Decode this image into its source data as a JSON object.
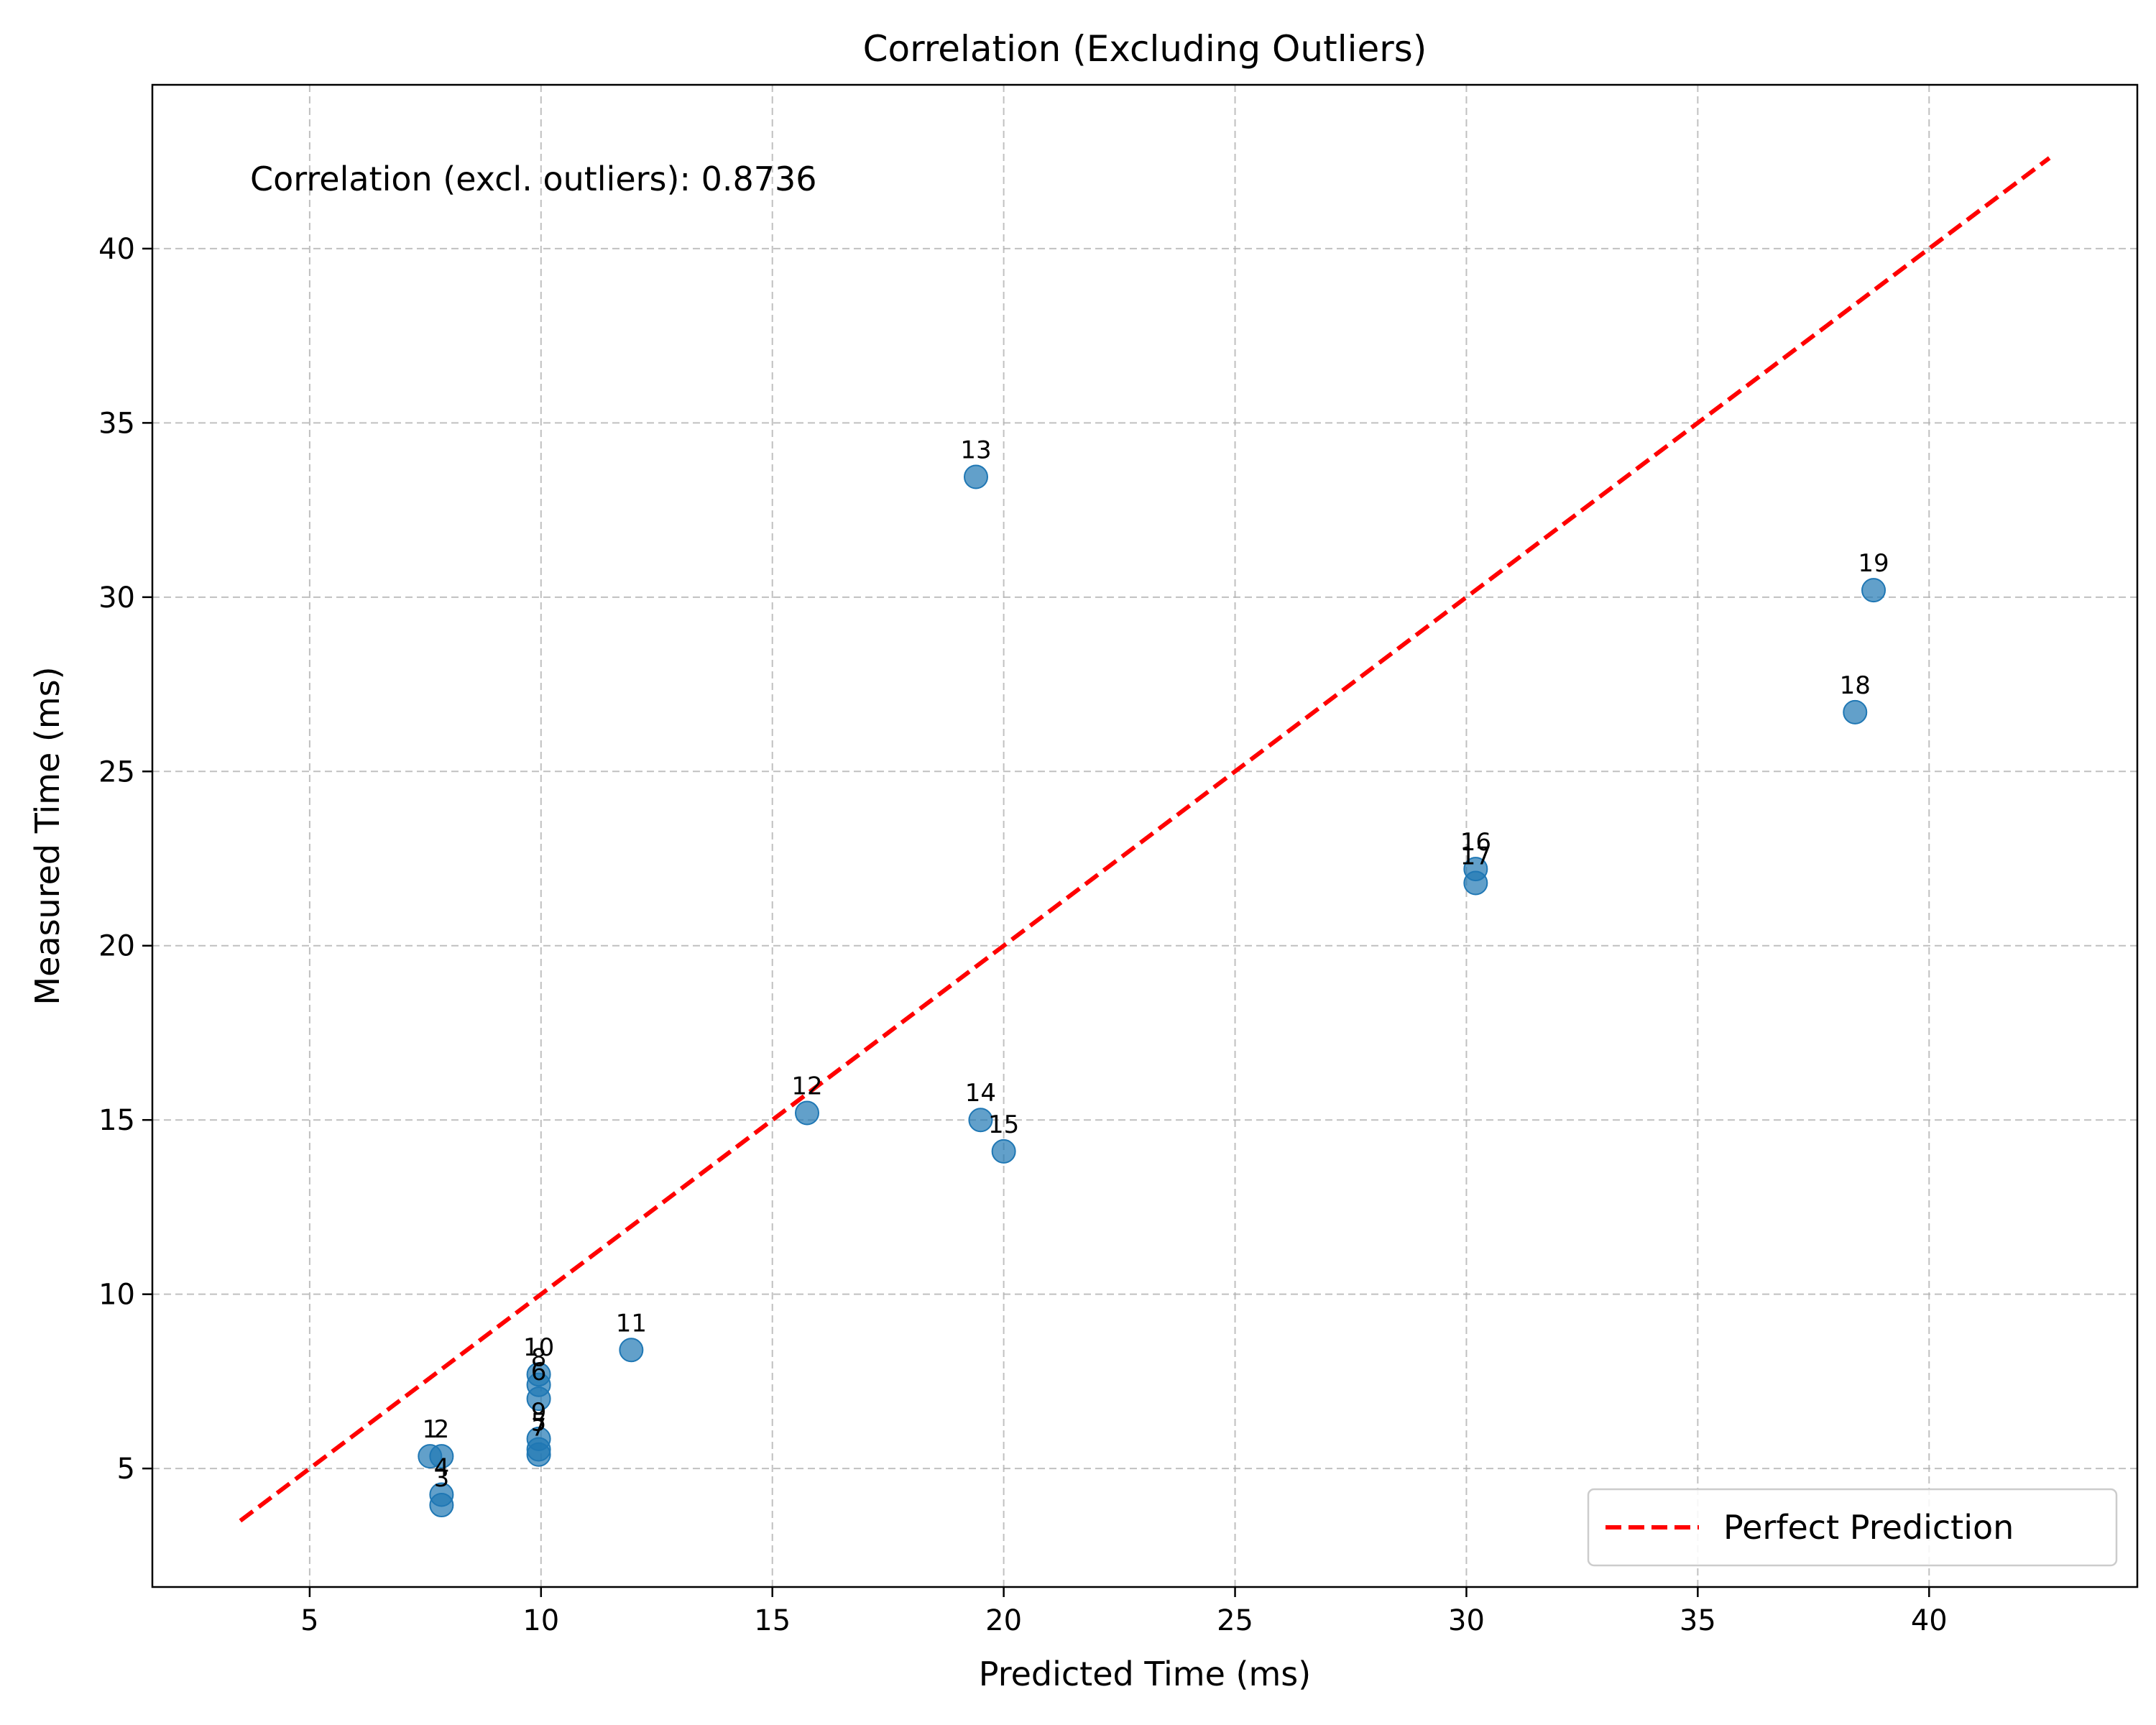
{
  "chart_data": {
    "type": "scatter",
    "title": "Correlation (Excluding Outliers)",
    "xlabel": "Predicted Time (ms)",
    "ylabel": "Measured Time (ms)",
    "xlim": [
      1.6,
      44.5
    ],
    "ylim": [
      1.6,
      44.7
    ],
    "xticks": [
      5,
      10,
      15,
      20,
      25,
      30,
      35,
      40
    ],
    "yticks": [
      5,
      10,
      15,
      20,
      25,
      30,
      35,
      40
    ],
    "grid": true,
    "annotation": "Correlation (excl. outliers): 0.8736",
    "points": [
      {
        "label": "1",
        "x": 7.6,
        "y": 5.35
      },
      {
        "label": "2",
        "x": 7.85,
        "y": 5.35
      },
      {
        "label": "3",
        "x": 7.85,
        "y": 3.95
      },
      {
        "label": "4",
        "x": 7.85,
        "y": 4.25
      },
      {
        "label": "5",
        "x": 9.95,
        "y": 5.55
      },
      {
        "label": "6",
        "x": 9.95,
        "y": 7.0
      },
      {
        "label": "7",
        "x": 9.95,
        "y": 5.4
      },
      {
        "label": "8",
        "x": 9.95,
        "y": 7.4
      },
      {
        "label": "9",
        "x": 9.95,
        "y": 5.85
      },
      {
        "label": "10",
        "x": 9.95,
        "y": 7.7
      },
      {
        "label": "11",
        "x": 11.95,
        "y": 8.4
      },
      {
        "label": "12",
        "x": 15.75,
        "y": 15.2
      },
      {
        "label": "13",
        "x": 19.4,
        "y": 33.45
      },
      {
        "label": "14",
        "x": 19.5,
        "y": 15.0
      },
      {
        "label": "15",
        "x": 20.0,
        "y": 14.1
      },
      {
        "label": "16",
        "x": 30.2,
        "y": 22.2
      },
      {
        "label": "17",
        "x": 30.2,
        "y": 21.8
      },
      {
        "label": "18",
        "x": 38.4,
        "y": 26.7
      },
      {
        "label": "19",
        "x": 38.8,
        "y": 30.2
      }
    ],
    "reference_line": {
      "name": "Perfect Prediction",
      "from": [
        3.5,
        3.5
      ],
      "to": [
        42.6,
        42.6
      ],
      "style": "dashed",
      "color": "#ff0000"
    },
    "marker_color": "#1f77b4",
    "legend": {
      "placement": "lower-right",
      "entries": [
        "Perfect Prediction"
      ]
    }
  }
}
